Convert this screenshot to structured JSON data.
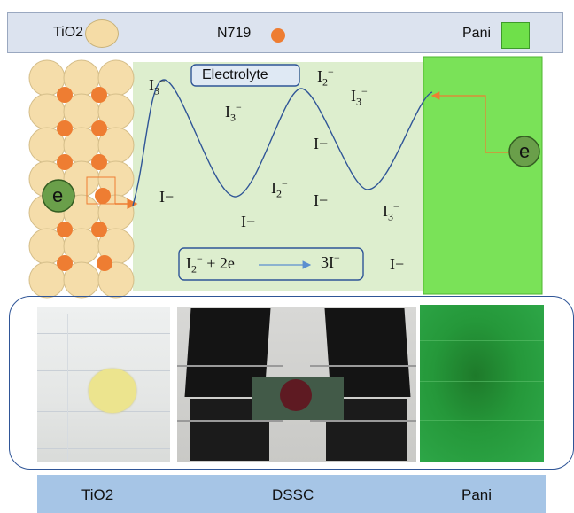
{
  "legend": {
    "tio2_label": "TiO2",
    "dye_label": "N719",
    "pani_label": "Pani",
    "tio2_color": "#f5dca6",
    "dye_color": "#ee7d32",
    "pani_color": "#6fe04a"
  },
  "diagram": {
    "electrolyte_label": "Electrolyte",
    "electron_label": "e",
    "ions": {
      "triiodide_base": "I",
      "triiodide_sub": "3",
      "triiodide_sup": "−",
      "iodine_base": "I",
      "iodine_sub": "2",
      "iodine_sup": "−",
      "iodide": "I−"
    },
    "reaction": {
      "lhs_base": "I",
      "lhs_sub": "2",
      "lhs_sup": "−",
      "lhs_rest": " + 2e",
      "rhs_coef": "3I",
      "rhs_sup": "−"
    },
    "colors": {
      "electrolyte_fill": "#d9ecc9",
      "wave_stroke": "#2f5597",
      "arrow_color": "#ee7d32",
      "electron_fill": "#6a9f4a"
    }
  },
  "photos": {
    "tio2_caption": "TiO2",
    "dssc_caption": "DSSC",
    "pani_caption": "Pani"
  }
}
